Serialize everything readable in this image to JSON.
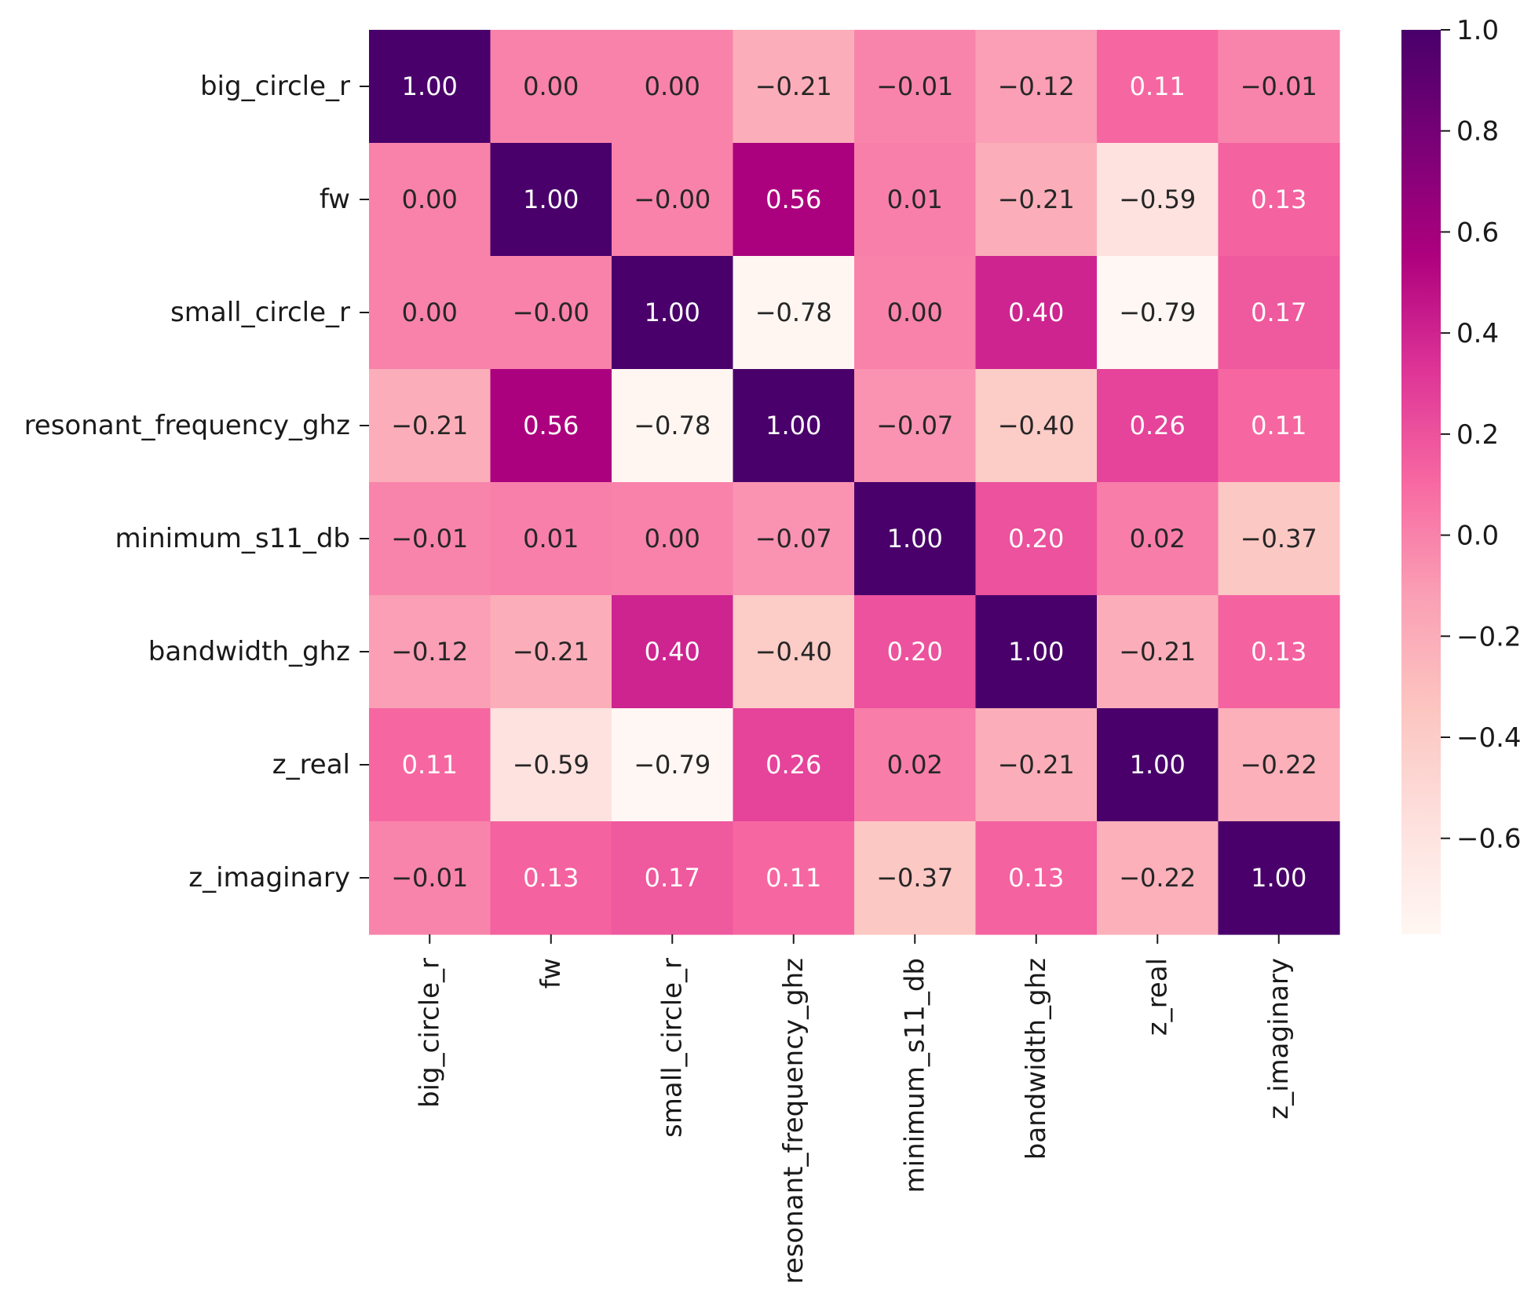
{
  "chart_data": {
    "type": "heatmap",
    "title": "",
    "xlabel": "",
    "ylabel": "",
    "row_labels": [
      "big_circle_r",
      "fw",
      "small_circle_r",
      "resonant_frequency_ghz",
      "minimum_s11_db",
      "bandwidth_ghz",
      "z_real",
      "z_imaginary"
    ],
    "col_labels": [
      "big_circle_r",
      "fw",
      "small_circle_r",
      "resonant_frequency_ghz",
      "minimum_s11_db",
      "bandwidth_ghz",
      "z_real",
      "z_imaginary"
    ],
    "values": [
      [
        1.0,
        0.0,
        0.0,
        -0.21,
        -0.01,
        -0.12,
        0.11,
        -0.01
      ],
      [
        0.0,
        1.0,
        -0.0,
        0.56,
        0.01,
        -0.21,
        -0.59,
        0.13
      ],
      [
        0.0,
        -0.0,
        1.0,
        -0.78,
        0.0,
        0.4,
        -0.79,
        0.17
      ],
      [
        -0.21,
        0.56,
        -0.78,
        1.0,
        -0.07,
        -0.4,
        0.26,
        0.11
      ],
      [
        -0.01,
        0.01,
        0.0,
        -0.07,
        1.0,
        0.2,
        0.02,
        -0.37
      ],
      [
        -0.12,
        -0.21,
        0.4,
        -0.4,
        0.2,
        1.0,
        -0.21,
        0.13
      ],
      [
        0.11,
        -0.59,
        -0.79,
        0.26,
        0.02,
        -0.21,
        1.0,
        -0.22
      ],
      [
        -0.01,
        0.13,
        0.17,
        0.11,
        -0.37,
        0.13,
        -0.22,
        1.0
      ]
    ],
    "cell_text": [
      [
        "1.00",
        "0.00",
        "0.00",
        "−0.21",
        "−0.01",
        "−0.12",
        "0.11",
        "−0.01"
      ],
      [
        "0.00",
        "1.00",
        "−0.00",
        "0.56",
        "0.01",
        "−0.21",
        "−0.59",
        "0.13"
      ],
      [
        "0.00",
        "−0.00",
        "1.00",
        "−0.78",
        "0.00",
        "0.40",
        "−0.79",
        "0.17"
      ],
      [
        "−0.21",
        "0.56",
        "−0.78",
        "1.00",
        "−0.07",
        "−0.40",
        "0.26",
        "0.11"
      ],
      [
        "−0.01",
        "0.01",
        "0.00",
        "−0.07",
        "1.00",
        "0.20",
        "0.02",
        "−0.37"
      ],
      [
        "−0.12",
        "−0.21",
        "0.40",
        "−0.40",
        "0.20",
        "1.00",
        "−0.21",
        "0.13"
      ],
      [
        "0.11",
        "−0.59",
        "−0.79",
        "0.26",
        "0.02",
        "−0.21",
        "1.00",
        "−0.22"
      ],
      [
        "−0.01",
        "0.13",
        "0.17",
        "0.11",
        "−0.37",
        "0.13",
        "−0.22",
        "1.00"
      ]
    ],
    "colorbar": {
      "min": -0.79,
      "max": 1.0,
      "ticks": [
        1.0,
        0.8,
        0.6,
        0.4,
        0.2,
        0.0,
        -0.2,
        -0.4,
        -0.6
      ],
      "tick_labels": [
        "1.0",
        "0.8",
        "0.6",
        "0.4",
        "0.2",
        "0.0",
        "−0.2",
        "−0.4",
        "−0.6"
      ],
      "colormap": "RdPu",
      "colormap_stops": [
        "#fff7f3",
        "#fde0dd",
        "#fcc5c0",
        "#fa9fb5",
        "#f768a1",
        "#dd3497",
        "#ae017e",
        "#7a0177",
        "#49006a"
      ],
      "text_dark": "#262626",
      "text_light": "#ffffff"
    }
  }
}
